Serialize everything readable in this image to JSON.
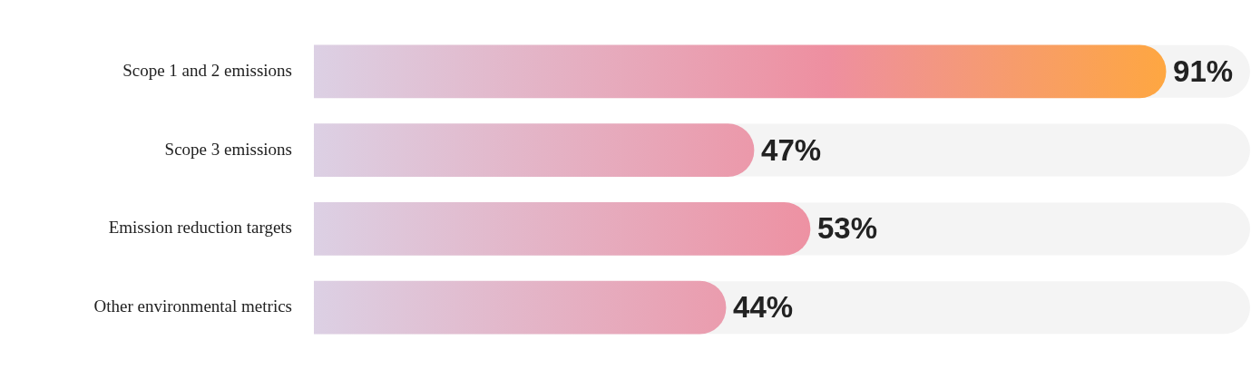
{
  "chart_data": {
    "type": "bar",
    "orientation": "horizontal",
    "categories": [
      "Scope 1 and 2 emissions",
      "Scope 3 emissions",
      "Emission reduction targets",
      "Other environmental metrics"
    ],
    "values": [
      91,
      47,
      53,
      44
    ],
    "color": "#ee8fa0",
    "xlim": [
      0,
      100
    ],
    "value_labels": [
      "91%",
      "47%",
      "53%",
      "44%"
    ],
    "tick_labels": "y",
    "grid": false,
    "legend": false
  }
}
